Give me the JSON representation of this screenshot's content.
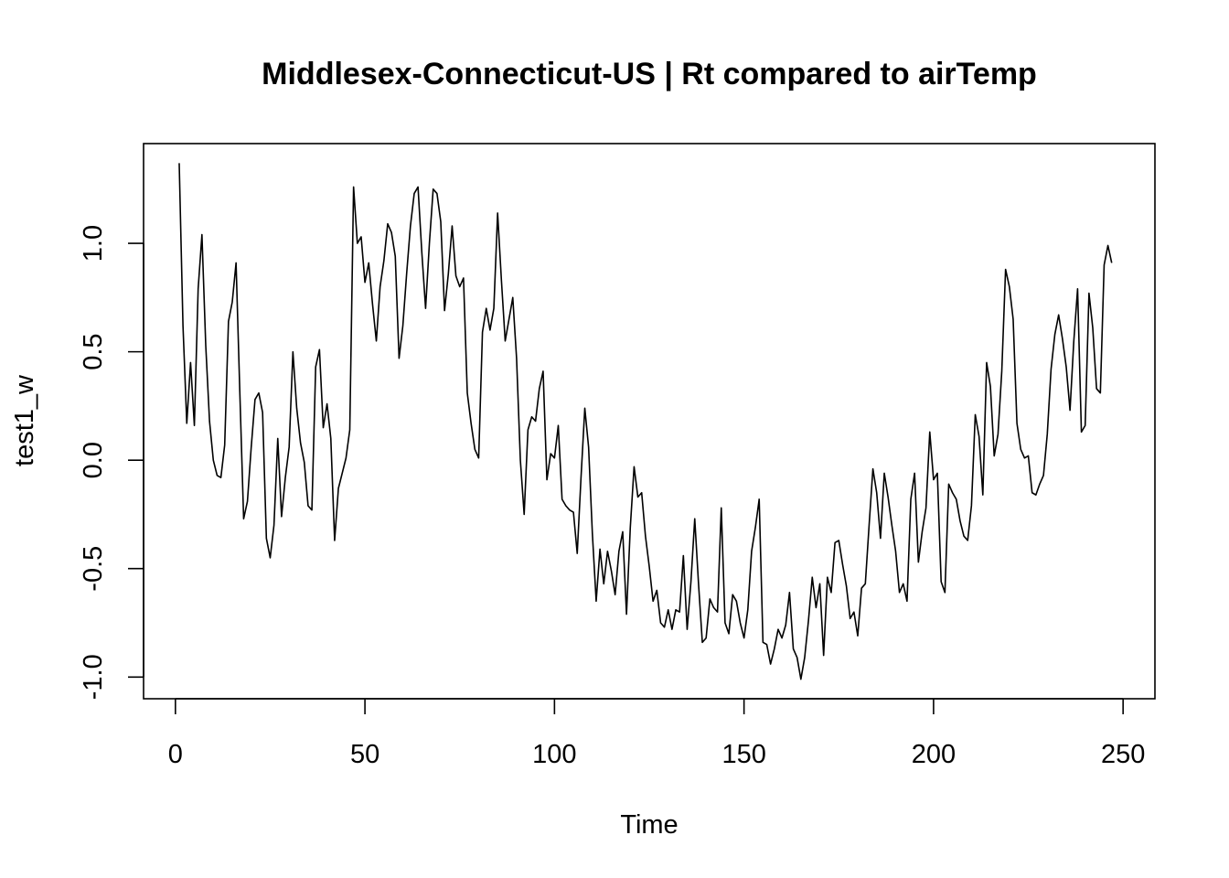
{
  "chart_data": {
    "type": "line",
    "title": "Middlesex-Connecticut-US | Rt compared to airTemp",
    "xlabel": "Time",
    "ylabel": "test1_w",
    "xlim": [
      -8.4,
      258.4
    ],
    "ylim": [
      -1.1,
      1.46
    ],
    "xticks": [
      0,
      50,
      100,
      150,
      200,
      250
    ],
    "xtick_labels": [
      "0",
      "50",
      "100",
      "150",
      "200",
      "250"
    ],
    "yticks": [
      -1.0,
      -0.5,
      0.0,
      0.5,
      1.0
    ],
    "ytick_labels": [
      "-1.0",
      "-0.5",
      "0.0",
      "0.5",
      "1.0"
    ],
    "grid": false,
    "legend": "none",
    "series": [
      {
        "x_start": 1,
        "values": [
          1.37,
          0.62,
          0.17,
          0.45,
          0.16,
          0.79,
          1.04,
          0.53,
          0.18,
          0.0,
          -0.07,
          -0.08,
          0.07,
          0.64,
          0.73,
          0.91,
          0.31,
          -0.27,
          -0.19,
          0.06,
          0.28,
          0.31,
          0.22,
          -0.36,
          -0.45,
          -0.3,
          0.1,
          -0.26,
          -0.08,
          0.06,
          0.5,
          0.24,
          0.08,
          -0.01,
          -0.21,
          -0.23,
          0.43,
          0.51,
          0.15,
          0.26,
          0.1,
          -0.37,
          -0.13,
          -0.06,
          0.01,
          0.14,
          1.26,
          1.0,
          1.03,
          0.82,
          0.91,
          0.72,
          0.55,
          0.8,
          0.92,
          1.09,
          1.05,
          0.94,
          0.47,
          0.62,
          0.86,
          1.08,
          1.23,
          1.26,
          0.96,
          0.7,
          1.0,
          1.25,
          1.23,
          1.1,
          0.69,
          0.86,
          1.08,
          0.85,
          0.8,
          0.84,
          0.31,
          0.17,
          0.05,
          0.01,
          0.59,
          0.7,
          0.6,
          0.7,
          1.14,
          0.83,
          0.55,
          0.65,
          0.75,
          0.47,
          0.0,
          -0.25,
          0.14,
          0.2,
          0.18,
          0.33,
          0.41,
          -0.09,
          0.03,
          0.01,
          0.16,
          -0.18,
          -0.21,
          -0.23,
          -0.24,
          -0.43,
          -0.08,
          0.24,
          0.06,
          -0.34,
          -0.65,
          -0.41,
          -0.57,
          -0.42,
          -0.51,
          -0.62,
          -0.42,
          -0.33,
          -0.71,
          -0.31,
          -0.03,
          -0.17,
          -0.15,
          -0.35,
          -0.49,
          -0.65,
          -0.6,
          -0.75,
          -0.77,
          -0.69,
          -0.78,
          -0.69,
          -0.7,
          -0.44,
          -0.78,
          -0.56,
          -0.27,
          -0.57,
          -0.84,
          -0.82,
          -0.64,
          -0.68,
          -0.7,
          -0.22,
          -0.75,
          -0.8,
          -0.62,
          -0.65,
          -0.75,
          -0.82,
          -0.69,
          -0.42,
          -0.31,
          -0.18,
          -0.84,
          -0.85,
          -0.94,
          -0.87,
          -0.78,
          -0.82,
          -0.76,
          -0.61,
          -0.87,
          -0.91,
          -1.01,
          -0.91,
          -0.74,
          -0.54,
          -0.68,
          -0.57,
          -0.9,
          -0.54,
          -0.61,
          -0.38,
          -0.37,
          -0.48,
          -0.58,
          -0.73,
          -0.7,
          -0.81,
          -0.59,
          -0.57,
          -0.3,
          -0.04,
          -0.15,
          -0.36,
          -0.06,
          -0.17,
          -0.3,
          -0.42,
          -0.61,
          -0.57,
          -0.65,
          -0.18,
          -0.06,
          -0.47,
          -0.33,
          -0.22,
          0.13,
          -0.09,
          -0.06,
          -0.56,
          -0.61,
          -0.11,
          -0.15,
          -0.18,
          -0.28,
          -0.35,
          -0.37,
          -0.21,
          0.21,
          0.11,
          -0.16,
          0.45,
          0.34,
          0.02,
          0.12,
          0.41,
          0.88,
          0.8,
          0.65,
          0.17,
          0.05,
          0.01,
          0.02,
          -0.15,
          -0.16,
          -0.11,
          -0.07,
          0.12,
          0.42,
          0.58,
          0.67,
          0.56,
          0.43,
          0.23,
          0.55,
          0.79,
          0.13,
          0.16,
          0.77,
          0.61,
          0.33,
          0.31,
          0.9,
          0.99,
          0.91
        ]
      }
    ]
  }
}
